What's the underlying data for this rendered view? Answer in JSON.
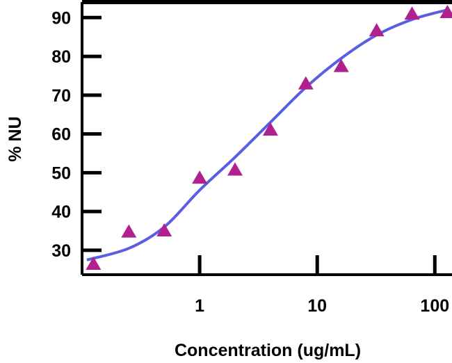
{
  "chart_data": {
    "type": "scatter",
    "title": "",
    "xlabel": "Concentration (ug/mL)",
    "ylabel": "% NU",
    "x_scale": "log",
    "xlim": [
      0.1,
      140
    ],
    "ylim": [
      23.7,
      94
    ],
    "x_ticks": [
      1,
      10,
      100
    ],
    "x_tick_labels": [
      "1",
      "10",
      "100"
    ],
    "y_ticks": [
      30,
      40,
      50,
      60,
      70,
      80,
      90
    ],
    "y_tick_labels": [
      "30",
      "40",
      "50",
      "60",
      "70",
      "80",
      "90"
    ],
    "grid": false,
    "legend": "none",
    "series": [
      {
        "kind": "points",
        "marker": "triangle",
        "color": "#b0208f",
        "x": [
          0.125,
          0.25,
          0.5,
          1,
          2,
          4,
          8,
          16,
          32,
          64,
          128
        ],
        "y": [
          26.4,
          34.7,
          35,
          48.6,
          50.7,
          61,
          72.9,
          77.4,
          86.6,
          90.9,
          91.3
        ]
      },
      {
        "kind": "fit-curve",
        "color": "#5a5ee0",
        "x": [
          0.11,
          0.25,
          0.5,
          1,
          2,
          4,
          8,
          16,
          32,
          64,
          128
        ],
        "y": [
          27.5,
          30.5,
          36,
          45.5,
          54,
          63,
          72,
          79.5,
          85.5,
          89.5,
          92
        ]
      }
    ]
  }
}
